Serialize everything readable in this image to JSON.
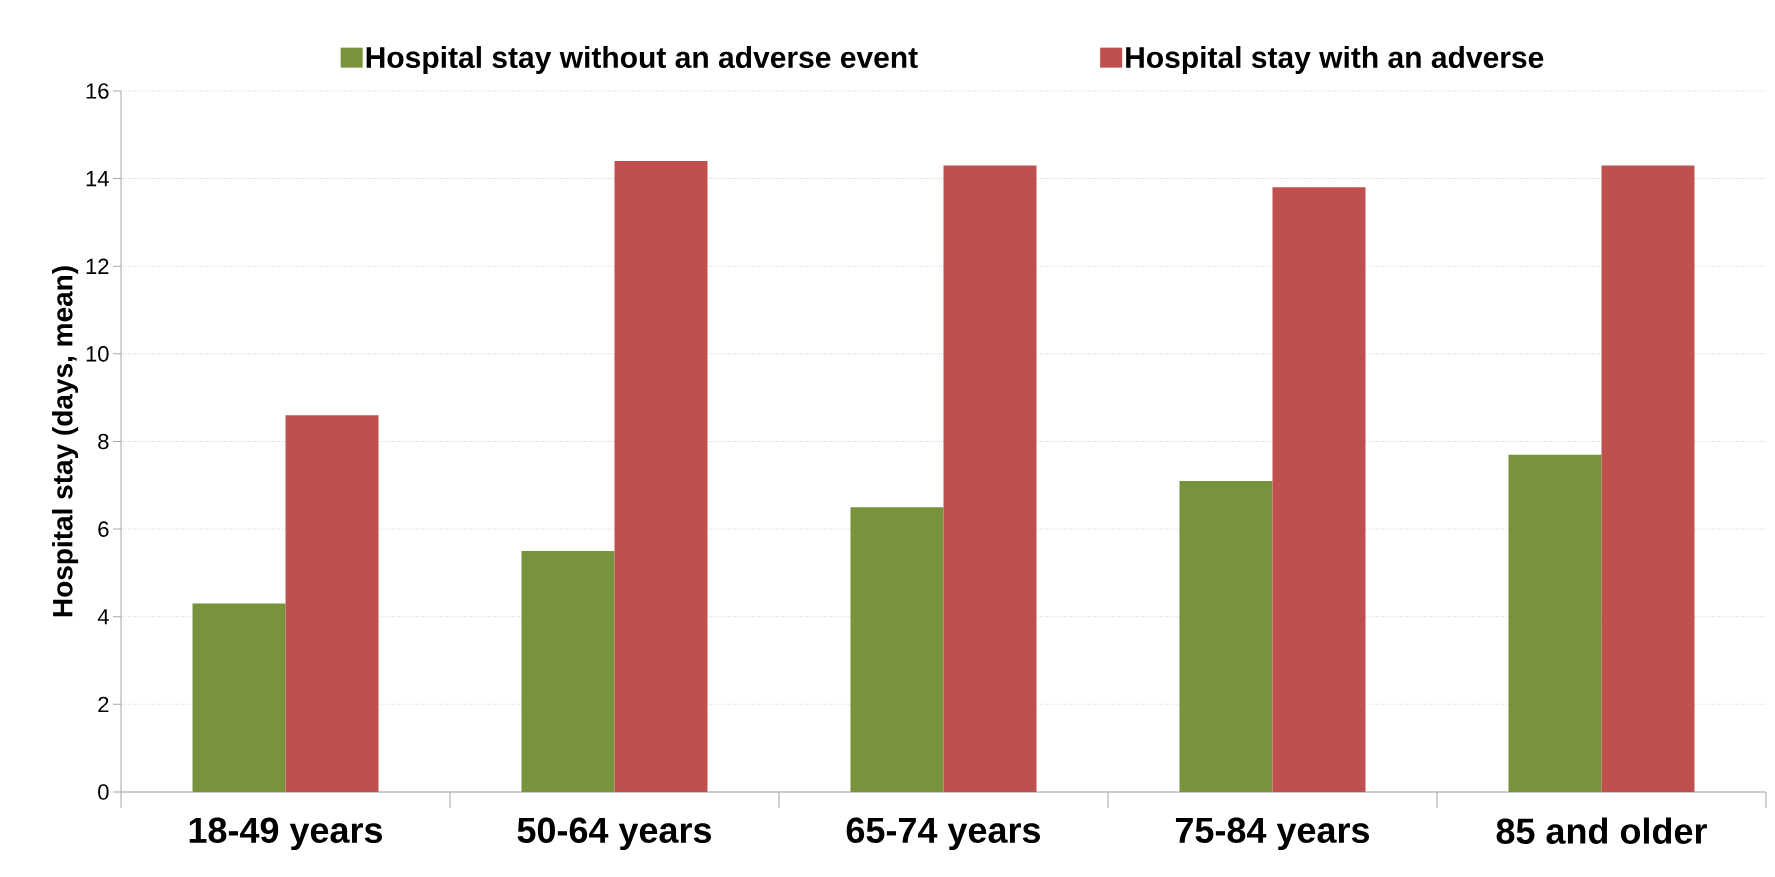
{
  "chart_data": {
    "type": "bar",
    "ylabel": "Hospital stay (days, mean)",
    "categories": [
      "18-49 years",
      "50-64 years",
      "65-74 years",
      "75-84 years",
      "85 and older"
    ],
    "series": [
      {
        "name": "Hospital stay without an adverse event",
        "color": "#77933c",
        "values": [
          4.3,
          5.5,
          6.5,
          7.1,
          7.7
        ]
      },
      {
        "name": "Hospital stay with an adverse",
        "color": "#c0504d",
        "values": [
          8.6,
          14.4,
          14.3,
          13.8,
          14.3
        ]
      }
    ],
    "ylim": [
      0,
      16
    ],
    "yticks": [
      0,
      2,
      4,
      6,
      8,
      10,
      12,
      14,
      16
    ],
    "grid": "y",
    "legend": "top"
  }
}
